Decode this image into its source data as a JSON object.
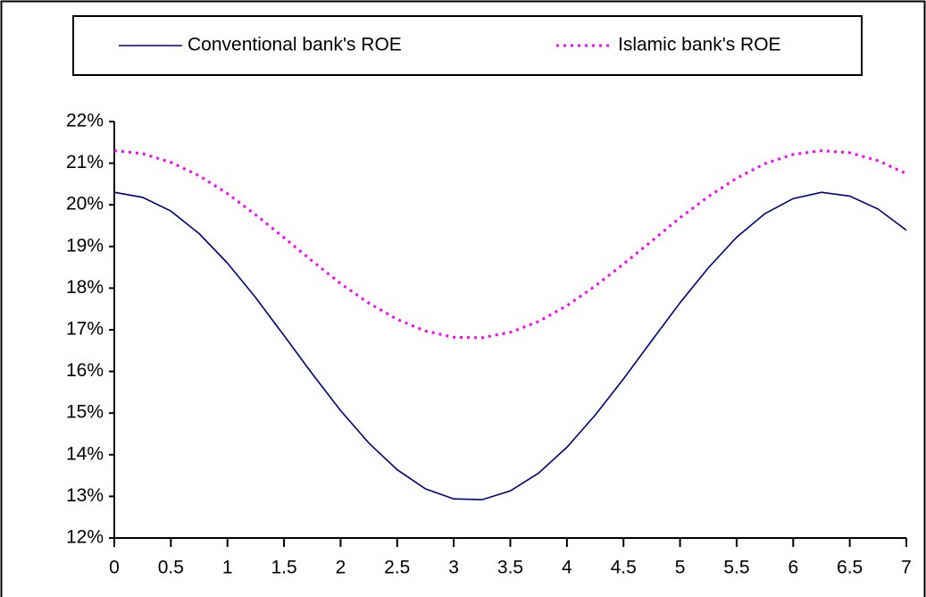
{
  "chart_data": {
    "type": "line",
    "x": [
      0,
      0.25,
      0.5,
      0.75,
      1,
      1.25,
      1.5,
      1.75,
      2,
      2.25,
      2.5,
      2.75,
      3,
      3.25,
      3.5,
      3.75,
      4,
      4.25,
      4.5,
      4.75,
      5,
      5.25,
      5.5,
      5.75,
      6,
      6.25,
      6.5,
      6.75,
      7
    ],
    "series": [
      {
        "name": "Conventional bank's ROE",
        "color": "#000080",
        "style": "solid",
        "values": [
          20.3,
          20.18,
          19.85,
          19.31,
          18.6,
          17.77,
          16.86,
          15.94,
          15.06,
          14.28,
          13.64,
          13.18,
          12.94,
          12.92,
          13.13,
          13.56,
          14.18,
          14.95,
          15.82,
          16.74,
          17.65,
          18.49,
          19.22,
          19.79,
          20.15,
          20.3,
          20.21,
          19.9,
          19.39
        ]
      },
      {
        "name": "Islamic bank's ROE",
        "color": "#ff00ff",
        "style": "dotted",
        "values": [
          21.3,
          21.23,
          21.02,
          20.7,
          20.27,
          19.76,
          19.21,
          18.65,
          18.11,
          17.64,
          17.25,
          16.97,
          16.82,
          16.81,
          16.94,
          17.2,
          17.58,
          18.05,
          18.58,
          19.13,
          19.69,
          20.2,
          20.64,
          20.99,
          21.21,
          21.3,
          21.25,
          21.06,
          20.75
        ]
      }
    ],
    "xlim": [
      0,
      7
    ],
    "xticks": [
      0,
      0.5,
      1,
      1.5,
      2,
      2.5,
      3,
      3.5,
      4,
      4.5,
      5,
      5.5,
      6,
      6.5,
      7
    ],
    "ylim": [
      12,
      22
    ],
    "yticks": [
      {
        "value": 12,
        "label": "12%"
      },
      {
        "value": 13,
        "label": "13%"
      },
      {
        "value": 14,
        "label": "14%"
      },
      {
        "value": 15,
        "label": "15%"
      },
      {
        "value": 16,
        "label": "16%"
      },
      {
        "value": 17,
        "label": "17%"
      },
      {
        "value": 18,
        "label": "18%"
      },
      {
        "value": 19,
        "label": "19%"
      },
      {
        "value": 20,
        "label": "20%"
      },
      {
        "value": 21,
        "label": "21%"
      },
      {
        "value": 22,
        "label": "22%"
      }
    ],
    "legend": "top"
  }
}
